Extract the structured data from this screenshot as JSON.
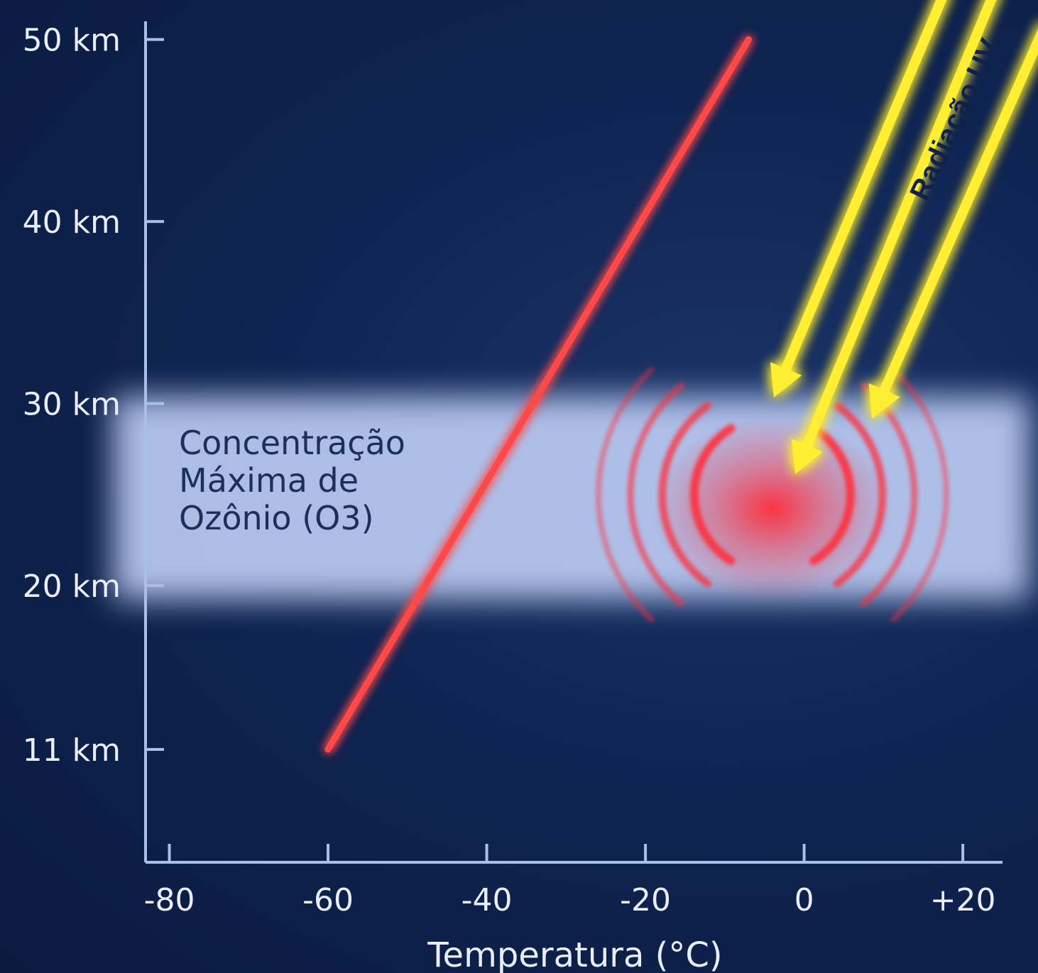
{
  "chart_data": {
    "type": "line",
    "xlabel": "Temperatura (°C)",
    "ylabel": "",
    "x_ticks": [
      "-80",
      "-60",
      "-40",
      "-20",
      "0",
      "+20"
    ],
    "x_tick_values": [
      -80,
      -60,
      -40,
      -20,
      0,
      20
    ],
    "y_ticks": [
      "50 km",
      "40 km",
      "30 km",
      "20 km",
      "11 km"
    ],
    "y_tick_values": [
      50,
      40,
      30,
      20,
      11
    ],
    "xlim": [
      -83,
      25
    ],
    "ylim": [
      4.8,
      51
    ],
    "grid": false,
    "series": [
      {
        "values": [
          {
            "x": -60,
            "y": 11
          },
          {
            "x": -7,
            "y": 50
          }
        ],
        "color": "#ff4a4a"
      }
    ],
    "band": {
      "y_range": [
        20,
        30
      ],
      "label_lines": [
        "Concentração",
        "Máxima de",
        "Ozônio (O3)"
      ],
      "color": "#c9d8ff"
    },
    "heat_source": {
      "x": -4,
      "y": 25,
      "color": "#ff2d3d"
    },
    "uv": {
      "label": "Radiação UV",
      "color": "#ffee33"
    }
  },
  "colors": {
    "axis": "#a9bfe6",
    "background": "#0f2452"
  }
}
